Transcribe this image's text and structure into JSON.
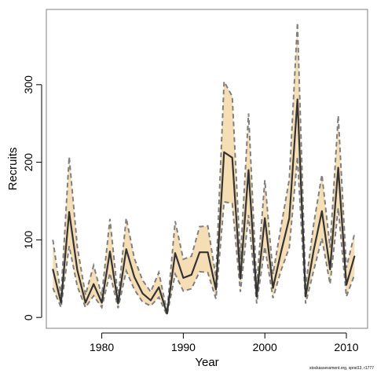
{
  "chart_data": {
    "type": "line",
    "xlabel": "Year",
    "ylabel": "Recruits",
    "xlim": [
      1973.2,
      2012.6
    ],
    "ylim": [
      -14,
      397
    ],
    "x_ticks": [
      1980,
      1990,
      2000,
      2010
    ],
    "y_ticks": [
      0,
      100,
      200,
      300
    ],
    "grid": false,
    "legend": "none",
    "x": [
      1974,
      1975,
      1976,
      1977,
      1978,
      1979,
      1980,
      1981,
      1982,
      1983,
      1984,
      1985,
      1986,
      1987,
      1988,
      1989,
      1990,
      1991,
      1992,
      1993,
      1994,
      1995,
      1996,
      1997,
      1998,
      1999,
      2000,
      2001,
      2002,
      2003,
      2004,
      2005,
      2006,
      2007,
      2008,
      2009,
      2010,
      2011
    ],
    "series": [
      {
        "role": "estimate",
        "values": [
          62,
          19,
          136,
          61,
          19,
          43,
          19,
          85,
          18,
          88,
          52,
          31,
          22,
          39,
          5,
          83,
          51,
          55,
          84,
          84,
          36,
          213,
          206,
          50,
          190,
          27,
          128,
          38,
          85,
          128,
          281,
          27,
          87,
          137,
          62,
          193,
          42,
          79
        ]
      },
      {
        "role": "upper",
        "values": [
          100,
          28,
          207,
          91,
          29,
          67,
          28,
          127,
          25,
          128,
          76,
          48,
          33,
          58,
          7,
          124,
          75,
          79,
          117,
          118,
          52,
          304,
          285,
          75,
          263,
          41,
          177,
          56,
          118,
          178,
          380,
          40,
          121,
          184,
          90,
          260,
          64,
          108
        ]
      },
      {
        "role": "lower",
        "values": [
          38,
          13,
          92,
          40,
          13,
          28,
          13,
          57,
          12,
          60,
          36,
          20,
          15,
          26,
          3,
          56,
          34,
          37,
          59,
          58,
          24,
          149,
          147,
          33,
          132,
          18,
          91,
          25,
          61,
          90,
          207,
          18,
          61,
          102,
          43,
          141,
          27,
          55
        ]
      }
    ],
    "colors": {
      "band": "#f5deb3",
      "band_edge": "#808080",
      "line": "#333333",
      "axis": "#000000",
      "box": "#808080"
    },
    "credit": "stockassessment.org, sprat13, r1777"
  }
}
